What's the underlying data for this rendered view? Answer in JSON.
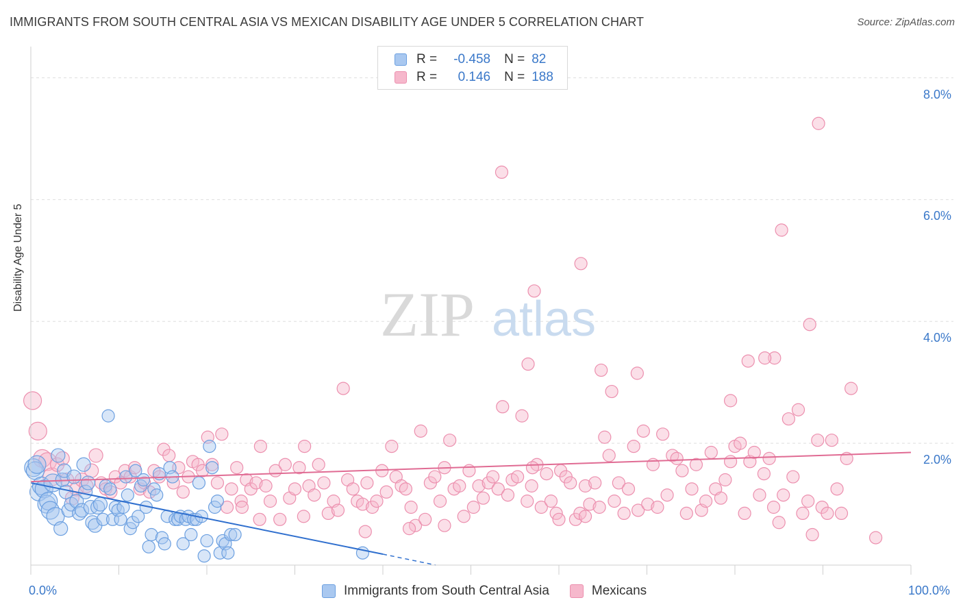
{
  "title": "IMMIGRANTS FROM SOUTH CENTRAL ASIA VS MEXICAN DISABILITY AGE UNDER 5 CORRELATION CHART",
  "source": "Source: ZipAtlas.com",
  "watermark": {
    "zip": "ZIP",
    "atlas": "atlas"
  },
  "legend": {
    "rows": [
      {
        "r_label": "R =",
        "r_value": "-0.458",
        "n_label": "N =",
        "n_value": "82"
      },
      {
        "r_label": "R =",
        "r_value": "0.146",
        "n_label": "N =",
        "n_value": "188"
      }
    ]
  },
  "colors": {
    "blue_fill": "#a9c8f0",
    "blue_stroke": "#6b9fe0",
    "blue_line": "#2f6fce",
    "pink_fill": "#f6b8cc",
    "pink_stroke": "#ec8fae",
    "pink_line": "#e06b93",
    "tick_text": "#3a78c9",
    "grid": "#dedede"
  },
  "chart_data": {
    "type": "scatter",
    "title": "IMMIGRANTS FROM SOUTH CENTRAL ASIA VS MEXICAN DISABILITY AGE UNDER 5 CORRELATION CHART",
    "xlabel": "",
    "ylabel": "Disability Age Under 5",
    "xlim": [
      0,
      100
    ],
    "ylim": [
      0,
      8.4
    ],
    "x_tick_labels": [
      "0.0%",
      "100.0%"
    ],
    "y_ticks": [
      2,
      4,
      6,
      8
    ],
    "y_tick_labels": [
      "2.0%",
      "4.0%",
      "6.0%",
      "8.0%"
    ],
    "grid": true,
    "legend_placement": "top-center",
    "series": [
      {
        "name": "Immigrants from South Central Asia",
        "color": "blue",
        "trendline": {
          "x": [
            0,
            40
          ],
          "y": [
            1.35,
            0.18
          ],
          "dashed_to": [
            46,
            0.0
          ]
        },
        "points": [
          [
            0.3,
            1.6
          ],
          [
            0.5,
            1.55
          ],
          [
            0.7,
            1.65
          ],
          [
            0.9,
            1.2
          ],
          [
            1.2,
            1.3
          ],
          [
            1.5,
            1.25
          ],
          [
            1.8,
            1.0
          ],
          [
            2.0,
            1.05
          ],
          [
            2.2,
            0.9
          ],
          [
            2.5,
            1.35
          ],
          [
            2.8,
            0.8
          ],
          [
            3.1,
            1.8
          ],
          [
            3.4,
            0.6
          ],
          [
            3.6,
            1.4
          ],
          [
            3.8,
            1.55
          ],
          [
            4.0,
            1.2
          ],
          [
            4.3,
            0.9
          ],
          [
            4.6,
            1.0
          ],
          [
            4.9,
            1.45
          ],
          [
            5.2,
            1.05
          ],
          [
            5.5,
            0.85
          ],
          [
            5.8,
            0.9
          ],
          [
            6.0,
            1.65
          ],
          [
            6.2,
            1.2
          ],
          [
            6.5,
            1.35
          ],
          [
            6.8,
            0.95
          ],
          [
            7.0,
            0.7
          ],
          [
            7.3,
            0.65
          ],
          [
            7.6,
            0.95
          ],
          [
            7.9,
            1.0
          ],
          [
            8.2,
            0.75
          ],
          [
            8.5,
            1.3
          ],
          [
            8.8,
            2.45
          ],
          [
            9.0,
            1.25
          ],
          [
            9.3,
            0.75
          ],
          [
            9.6,
            0.95
          ],
          [
            9.9,
            0.9
          ],
          [
            10.2,
            0.75
          ],
          [
            10.5,
            0.95
          ],
          [
            10.8,
            1.45
          ],
          [
            11.0,
            1.15
          ],
          [
            11.3,
            0.6
          ],
          [
            11.6,
            0.7
          ],
          [
            11.9,
            1.55
          ],
          [
            12.2,
            0.8
          ],
          [
            12.5,
            1.3
          ],
          [
            12.8,
            1.4
          ],
          [
            13.1,
            0.95
          ],
          [
            13.4,
            0.3
          ],
          [
            13.7,
            0.5
          ],
          [
            14.0,
            1.25
          ],
          [
            14.3,
            1.15
          ],
          [
            14.6,
            1.5
          ],
          [
            14.9,
            0.45
          ],
          [
            15.2,
            0.35
          ],
          [
            15.5,
            0.8
          ],
          [
            15.8,
            1.6
          ],
          [
            16.1,
            1.45
          ],
          [
            16.4,
            0.75
          ],
          [
            16.7,
            0.75
          ],
          [
            17.0,
            0.8
          ],
          [
            17.3,
            0.35
          ],
          [
            17.6,
            0.75
          ],
          [
            17.9,
            0.8
          ],
          [
            18.2,
            0.5
          ],
          [
            18.5,
            0.75
          ],
          [
            18.8,
            0.75
          ],
          [
            19.1,
            1.35
          ],
          [
            19.4,
            0.8
          ],
          [
            19.7,
            0.15
          ],
          [
            20.0,
            0.4
          ],
          [
            20.3,
            1.95
          ],
          [
            20.6,
            1.6
          ],
          [
            20.9,
            0.95
          ],
          [
            21.2,
            1.05
          ],
          [
            21.5,
            0.2
          ],
          [
            21.8,
            0.4
          ],
          [
            22.1,
            0.35
          ],
          [
            22.4,
            0.2
          ],
          [
            22.7,
            0.5
          ],
          [
            23.2,
            0.5
          ],
          [
            37.7,
            0.2
          ]
        ]
      },
      {
        "name": "Mexicans",
        "color": "pink",
        "trendline": {
          "x": [
            0,
            100
          ],
          "y": [
            1.37,
            1.85
          ]
        },
        "points": [
          [
            0.2,
            2.7
          ],
          [
            0.8,
            2.2
          ],
          [
            1.3,
            1.75
          ],
          [
            1.9,
            1.7
          ],
          [
            2.4,
            1.45
          ],
          [
            3.0,
            1.65
          ],
          [
            3.6,
            1.75
          ],
          [
            4.1,
            1.4
          ],
          [
            4.7,
            1.1
          ],
          [
            5.2,
            1.25
          ],
          [
            5.8,
            1.4
          ],
          [
            6.3,
            1.3
          ],
          [
            6.9,
            1.55
          ],
          [
            7.4,
            1.8
          ],
          [
            8.0,
            1.35
          ],
          [
            8.5,
            1.25
          ],
          [
            9.1,
            1.2
          ],
          [
            9.6,
            1.45
          ],
          [
            10.2,
            1.35
          ],
          [
            10.7,
            1.55
          ],
          [
            11.3,
            1.45
          ],
          [
            11.8,
            1.6
          ],
          [
            12.4,
            1.25
          ],
          [
            12.9,
            1.35
          ],
          [
            13.5,
            1.2
          ],
          [
            14.0,
            1.55
          ],
          [
            14.6,
            1.45
          ],
          [
            15.1,
            1.9
          ],
          [
            15.7,
            1.8
          ],
          [
            16.2,
            1.35
          ],
          [
            16.8,
            1.6
          ],
          [
            17.3,
            1.2
          ],
          [
            17.9,
            1.45
          ],
          [
            18.4,
            1.7
          ],
          [
            19.0,
            1.65
          ],
          [
            19.5,
            1.55
          ],
          [
            20.1,
            2.1
          ],
          [
            20.6,
            1.65
          ],
          [
            21.2,
            1.35
          ],
          [
            21.7,
            2.15
          ],
          [
            22.3,
            0.95
          ],
          [
            22.8,
            1.25
          ],
          [
            23.4,
            1.6
          ],
          [
            23.9,
            1.05
          ],
          [
            24.5,
            1.4
          ],
          [
            25.0,
            1.25
          ],
          [
            25.6,
            1.35
          ],
          [
            26.1,
            1.95
          ],
          [
            26.7,
            1.3
          ],
          [
            27.2,
            1.05
          ],
          [
            27.8,
            1.55
          ],
          [
            28.3,
            0.75
          ],
          [
            28.9,
            1.65
          ],
          [
            29.4,
            1.1
          ],
          [
            30.0,
            1.25
          ],
          [
            30.5,
            1.6
          ],
          [
            31.1,
            1.95
          ],
          [
            31.6,
            1.3
          ],
          [
            32.2,
            1.15
          ],
          [
            32.7,
            1.65
          ],
          [
            33.3,
            1.35
          ],
          [
            33.8,
            0.85
          ],
          [
            34.4,
            1.05
          ],
          [
            34.9,
            0.9
          ],
          [
            35.5,
            2.9
          ],
          [
            36.0,
            1.4
          ],
          [
            36.6,
            1.25
          ],
          [
            37.1,
            1.05
          ],
          [
            37.7,
            1.0
          ],
          [
            38.2,
            1.35
          ],
          [
            38.8,
            0.95
          ],
          [
            39.3,
            1.05
          ],
          [
            39.9,
            1.55
          ],
          [
            40.4,
            1.2
          ],
          [
            41.0,
            1.95
          ],
          [
            41.5,
            1.45
          ],
          [
            42.1,
            1.3
          ],
          [
            42.6,
            1.25
          ],
          [
            43.2,
            0.95
          ],
          [
            43.7,
            0.65
          ],
          [
            44.3,
            2.2
          ],
          [
            44.8,
            0.75
          ],
          [
            45.4,
            1.35
          ],
          [
            45.9,
            1.45
          ],
          [
            46.5,
            1.05
          ],
          [
            47.0,
            1.6
          ],
          [
            47.6,
            2.05
          ],
          [
            48.1,
            1.25
          ],
          [
            48.7,
            1.3
          ],
          [
            49.2,
            0.8
          ],
          [
            49.8,
            1.55
          ],
          [
            50.3,
            0.95
          ],
          [
            50.9,
            1.3
          ],
          [
            51.4,
            1.1
          ],
          [
            52.0,
            1.35
          ],
          [
            52.5,
            1.45
          ],
          [
            53.1,
            1.25
          ],
          [
            53.6,
            2.6
          ],
          [
            54.2,
            1.15
          ],
          [
            54.7,
            1.4
          ],
          [
            55.3,
            1.45
          ],
          [
            55.8,
            2.45
          ],
          [
            56.4,
            1.05
          ],
          [
            56.9,
            1.3
          ],
          [
            57.5,
            1.65
          ],
          [
            58.0,
            0.95
          ],
          [
            58.6,
            1.5
          ],
          [
            59.1,
            1.05
          ],
          [
            59.7,
            0.85
          ],
          [
            60.2,
            1.55
          ],
          [
            60.8,
            1.45
          ],
          [
            61.3,
            1.35
          ],
          [
            61.9,
            0.75
          ],
          [
            62.4,
            0.85
          ],
          [
            63.0,
            1.3
          ],
          [
            63.5,
            1.0
          ],
          [
            64.1,
            1.35
          ],
          [
            64.6,
            0.95
          ],
          [
            65.2,
            2.1
          ],
          [
            65.7,
            1.8
          ],
          [
            66.3,
            1.05
          ],
          [
            66.8,
            1.35
          ],
          [
            67.4,
            0.85
          ],
          [
            67.9,
            1.25
          ],
          [
            68.5,
            1.95
          ],
          [
            69.0,
            0.9
          ],
          [
            69.6,
            2.2
          ],
          [
            70.1,
            1.0
          ],
          [
            70.7,
            1.65
          ],
          [
            71.2,
            0.95
          ],
          [
            71.8,
            2.15
          ],
          [
            72.3,
            1.15
          ],
          [
            72.9,
            1.8
          ],
          [
            73.4,
            1.75
          ],
          [
            74.0,
            1.55
          ],
          [
            74.5,
            0.85
          ],
          [
            75.1,
            1.25
          ],
          [
            75.6,
            1.65
          ],
          [
            76.2,
            0.9
          ],
          [
            76.7,
            1.05
          ],
          [
            77.3,
            1.85
          ],
          [
            77.8,
            1.25
          ],
          [
            78.4,
            1.1
          ],
          [
            78.9,
            1.4
          ],
          [
            79.5,
            1.7
          ],
          [
            80.0,
            1.95
          ],
          [
            80.6,
            2.0
          ],
          [
            81.1,
            0.85
          ],
          [
            81.7,
            1.7
          ],
          [
            82.2,
            1.85
          ],
          [
            82.8,
            1.15
          ],
          [
            83.3,
            1.5
          ],
          [
            83.9,
            1.75
          ],
          [
            84.4,
            0.95
          ],
          [
            85.0,
            0.7
          ],
          [
            85.5,
            1.15
          ],
          [
            86.1,
            2.4
          ],
          [
            86.6,
            1.45
          ],
          [
            87.2,
            2.55
          ],
          [
            87.7,
            0.85
          ],
          [
            88.3,
            1.05
          ],
          [
            88.8,
            0.5
          ],
          [
            89.4,
            2.05
          ],
          [
            89.9,
            0.95
          ],
          [
            90.5,
            0.85
          ],
          [
            91.0,
            2.05
          ],
          [
            91.6,
            1.25
          ],
          [
            92.1,
            0.85
          ],
          [
            92.7,
            1.75
          ],
          [
            93.2,
            2.9
          ],
          [
            96.0,
            0.45
          ],
          [
            57.0,
            1.6
          ],
          [
            60.0,
            0.75
          ],
          [
            63.0,
            0.8
          ],
          [
            43.0,
            0.6
          ],
          [
            31.0,
            0.8
          ],
          [
            26.0,
            0.75
          ],
          [
            24.0,
            0.95
          ],
          [
            38.0,
            0.55
          ],
          [
            47.0,
            0.65
          ],
          [
            53.5,
            6.45
          ],
          [
            89.5,
            7.25
          ],
          [
            85.3,
            5.5
          ],
          [
            62.5,
            4.95
          ],
          [
            57.2,
            4.5
          ],
          [
            88.5,
            3.95
          ],
          [
            56.5,
            3.3
          ],
          [
            64.8,
            3.2
          ],
          [
            68.9,
            3.15
          ],
          [
            81.5,
            3.35
          ],
          [
            84.5,
            3.4
          ],
          [
            83.4,
            3.4
          ],
          [
            66.0,
            2.85
          ],
          [
            79.5,
            2.7
          ]
        ]
      }
    ]
  }
}
